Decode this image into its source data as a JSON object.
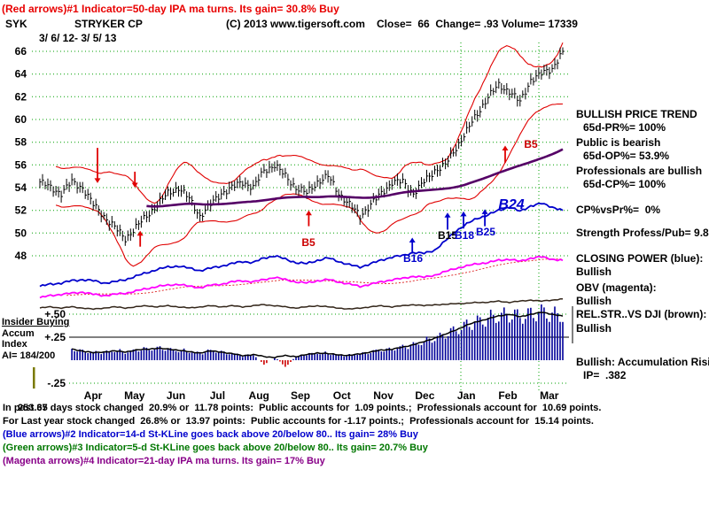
{
  "header": {
    "indicator1": "(Red arrows)#1 Indicator=50-day IPA ma turns. Its gain= 30.8% Buy",
    "ticker": "SYK",
    "company": "STRYKER CP",
    "copyright": "(C) 2013 www.tigersoft.com",
    "quote": "Close=  66  Change= .93 Volume= 17339",
    "date_range": "3/ 6/ 12- 3/ 5/ 13"
  },
  "left_labels": {
    "insider": "Insider Buying",
    "accum": "Accum",
    "index": "Index",
    "ai": "AI= 184/200"
  },
  "right_panel": {
    "lines": [
      "BULLISH PRICE TREND",
      "65d-PR%= 100%",
      "Public is bearish",
      "65d-OP%= 53.9%",
      "Professionals are bullish",
      "65d-CP%= 100%",
      "CP%vsPr%=  0%",
      "Strength Profess/Pub= 9.8",
      "CLOSING POWER (blue):",
      "Bullish",
      "OBV (magenta):",
      "Bullish",
      "REL.STR..VS DJI (brown):",
      "Bullish",
      "Bullish: Accumulation Risi",
      "IP=  .382"
    ]
  },
  "footer": {
    "overlay": "253.37",
    "lines": [
      "In past 65 days stock changed  20.9% or  11.78 points:  Public accounts for  1.09 points.;  Professionals account for  10.69 points.",
      "For Last year stock changed  26.8% or  13.97 points:  Public accounts for -1.17 points.;  Professionals account for  15.14 points.",
      "(Blue arrows)#2 Indicator=14-d St-KLine goes back above 20/below 80.. Its gain= 28% Buy",
      "(Green arrows)#3 Indicator=5-d St-KLine goes back above 20/below 80.. Its gain= 20.7% Buy",
      "(Magenta arrows)#4 Indicator=21-day IPA ma turns. Its gain= 17% Buy"
    ]
  },
  "colors": {
    "red_arrows": "#e00000",
    "blue_closing_power": "#0000cc",
    "magenta_obv": "#ff00ff",
    "purple_ma": "#550066",
    "green_grid": "#00a000",
    "histogram_blue": "#000099",
    "footer_green": "#007700",
    "footer_magenta": "#880088"
  },
  "chart_data": {
    "type": "ohlc",
    "symbol": "SYK",
    "title": "STRYKER CP",
    "date_range": "3/ 6/ 12- 3/ 5/ 13",
    "close": 66,
    "change": 0.93,
    "volume": 17339,
    "ai_ratio": "184/200",
    "x_months": [
      "Apr",
      "May",
      "Jun",
      "Jul",
      "Aug",
      "Sep",
      "Oct",
      "Nov",
      "Dec",
      "Jan",
      "Feb",
      "Mar"
    ],
    "price_ticks": [
      66,
      64,
      62,
      60,
      58,
      56,
      54,
      52,
      50,
      48
    ],
    "price_ylim": [
      47,
      67
    ],
    "lower_ticks": [
      {
        "label": "+.50",
        "value": 0.5
      },
      {
        "label": "+.25",
        "value": 0.25
      },
      {
        "label": "-.25",
        "value": -0.25
      }
    ],
    "weekly_close": [
      54.5,
      54.0,
      53.5,
      54.5,
      54.0,
      52.5,
      51.5,
      50.5,
      49.5,
      50.5,
      51.5,
      52.5,
      53.5,
      54.0,
      53.0,
      51.5,
      52.5,
      53.5,
      54.0,
      54.5,
      54.0,
      55.5,
      56.0,
      55.0,
      54.0,
      53.5,
      54.5,
      55.0,
      53.5,
      52.5,
      51.5,
      52.5,
      53.5,
      54.5,
      54.5,
      53.5,
      54.5,
      55.5,
      56.0,
      57.5,
      59.0,
      60.5,
      62.0,
      63.0,
      62.5,
      61.5,
      63.5,
      64.0,
      64.5,
      66.0
    ],
    "closing_power": [
      45.3,
      45.5,
      45.6,
      45.8,
      45.9,
      45.8,
      45.6,
      45.7,
      45.9,
      46.2,
      46.5,
      46.8,
      47.0,
      47.1,
      46.9,
      46.7,
      46.9,
      47.1,
      47.3,
      47.5,
      47.4,
      47.8,
      48.0,
      47.7,
      47.4,
      47.3,
      47.6,
      47.8,
      47.5,
      47.2,
      47.0,
      47.3,
      47.6,
      47.9,
      48.0,
      48.3,
      48.2,
      48.5,
      49.3,
      50.2,
      50.8,
      51.3,
      51.6,
      52.0,
      52.3,
      51.9,
      52.4,
      52.6,
      52.3,
      52.0
    ],
    "obv": [
      44.3,
      44.5,
      44.6,
      44.7,
      44.8,
      44.6,
      44.5,
      44.6,
      44.7,
      44.9,
      45.1,
      45.3,
      45.4,
      45.5,
      45.3,
      45.2,
      45.4,
      45.5,
      45.7,
      45.8,
      45.7,
      45.9,
      46.1,
      45.9,
      45.7,
      45.6,
      45.8,
      45.9,
      45.7,
      45.5,
      45.3,
      45.5,
      45.7,
      45.9,
      46.0,
      46.2,
      46.1,
      46.3,
      46.6,
      46.9,
      47.1,
      47.3,
      47.4,
      47.6,
      47.7,
      47.5,
      47.8,
      47.9,
      47.7,
      47.6
    ],
    "rel_strength": [
      43.4,
      43.5,
      43.4,
      43.5,
      43.4,
      43.3,
      43.4,
      43.5,
      43.4,
      43.5,
      43.6,
      43.5,
      43.6,
      43.5,
      43.4,
      43.5,
      43.6,
      43.5,
      43.6,
      43.5,
      43.6,
      43.7,
      43.6,
      43.5,
      43.4,
      43.5,
      43.6,
      43.5,
      43.4,
      43.3,
      43.4,
      43.5,
      43.6,
      43.5,
      43.6,
      43.7,
      43.6,
      43.7,
      43.7,
      43.8,
      43.8,
      43.9,
      43.9,
      44.0,
      43.9,
      44.0,
      44.1,
      44.0,
      44.1,
      44.2
    ],
    "accum_index_line": [
      0.12,
      0.13,
      0.11,
      0.12,
      0.1,
      0.08,
      0.09,
      0.1,
      0.09,
      0.11,
      0.12,
      0.13,
      0.12,
      0.11,
      0.09,
      0.08,
      0.1,
      0.09,
      0.07,
      0.05,
      0.06,
      0.04,
      0.03,
      0.05,
      0.04,
      0.06,
      0.08,
      0.07,
      0.06,
      0.05,
      0.07,
      0.09,
      0.11,
      0.12,
      0.14,
      0.17,
      0.2,
      0.24,
      0.28,
      0.33,
      0.38,
      0.42,
      0.45,
      0.48,
      0.5,
      0.47,
      0.5,
      0.52,
      0.5,
      0.48
    ],
    "accum_index_histogram": [
      0.12,
      0.13,
      0.11,
      0.12,
      0.1,
      0.08,
      0.09,
      0.1,
      0.09,
      0.11,
      0.12,
      0.13,
      0.12,
      0.11,
      0.09,
      0.08,
      0.1,
      0.09,
      0.07,
      0.05,
      0.06,
      -0.05,
      0.03,
      -0.07,
      0.04,
      0.06,
      0.08,
      0.07,
      0.06,
      0.05,
      0.07,
      0.09,
      0.11,
      0.12,
      0.14,
      0.17,
      0.2,
      0.24,
      0.28,
      0.33,
      0.38,
      0.42,
      0.45,
      0.48,
      0.5,
      0.47,
      0.5,
      0.52,
      0.5,
      0.48
    ],
    "annotations": [
      {
        "text": "B5",
        "color": "#cc0000",
        "week": 25.2,
        "price": 49.2
      },
      {
        "text": "B16",
        "color": "#0000cc",
        "week": 35.0,
        "price": 47.8
      },
      {
        "text": "B15",
        "color": "#000000",
        "week": 38.2,
        "price": 49.8
      },
      {
        "text": "B18",
        "color": "#0000cc",
        "week": 39.8,
        "price": 49.8
      },
      {
        "text": "B25",
        "color": "#0000cc",
        "week": 41.8,
        "price": 50.1
      },
      {
        "text": "B24",
        "color": "#0000cc",
        "week": 44.2,
        "price": 52.6,
        "size": 16,
        "italic": true
      },
      {
        "text": "B5",
        "color": "#cc0000",
        "week": 46.0,
        "price": 57.8
      }
    ],
    "arrows": [
      {
        "color": "#e00000",
        "week": 5.4,
        "from": 57.5,
        "to": 54.4
      },
      {
        "color": "#e00000",
        "week": 8.9,
        "from": 55.4,
        "to": 54.0
      },
      {
        "color": "#e00000",
        "week": 9.4,
        "from": 48.8,
        "to": 50.2
      },
      {
        "color": "#e00000",
        "week": 25.2,
        "from": 50.6,
        "to": 52.0
      },
      {
        "color": "#e00000",
        "week": 43.6,
        "from": 56.2,
        "to": 57.7
      },
      {
        "color": "#0000cc",
        "week": 34.9,
        "from": 48.2,
        "to": 49.6
      },
      {
        "color": "#0000cc",
        "week": 38.2,
        "from": 50.3,
        "to": 51.8
      },
      {
        "color": "#0000cc",
        "week": 39.7,
        "from": 50.4,
        "to": 51.9
      },
      {
        "color": "#0000cc",
        "week": 41.7,
        "from": 50.6,
        "to": 52.1
      }
    ]
  }
}
